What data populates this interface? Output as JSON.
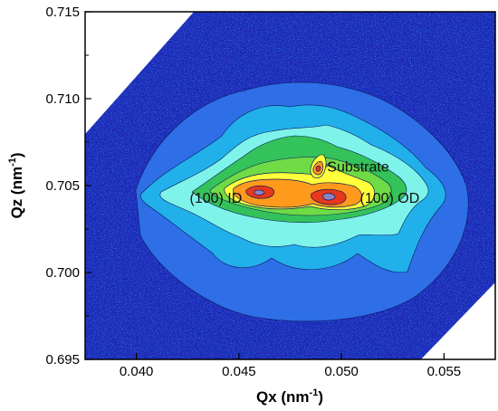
{
  "chart_data": {
    "type": "heatmap",
    "title": "",
    "xlabel": {
      "main": "Qx (nm",
      "sup": "-1",
      "close": ")"
    },
    "ylabel": {
      "main": "Qz (nm",
      "sup": "-1",
      "close": ")"
    },
    "xlim": [
      0.0375,
      0.0575
    ],
    "ylim": [
      0.695,
      0.715
    ],
    "x_ticks": [
      {
        "value": 0.04,
        "label": "0.040"
      },
      {
        "value": 0.045,
        "label": "0.045"
      },
      {
        "value": 0.05,
        "label": "0.050"
      },
      {
        "value": 0.055,
        "label": "0.055"
      }
    ],
    "y_ticks": [
      {
        "value": 0.695,
        "label": "0.695"
      },
      {
        "value": 0.7,
        "label": "0.700"
      },
      {
        "value": 0.705,
        "label": "0.705"
      },
      {
        "value": 0.71,
        "label": "0.710"
      },
      {
        "value": 0.715,
        "label": "0.715"
      }
    ],
    "grid": false,
    "colorscale": [
      "#1a1aa8",
      "#2f6ff0",
      "#24b3ec",
      "#7ef3ea",
      "#34c25a",
      "#6fdc46",
      "#ffff3a",
      "#ff9a1c",
      "#e8381c",
      "#8f80c0"
    ],
    "peaks": [
      {
        "label": "(100) ID",
        "x": 0.0465,
        "z": 0.7047
      },
      {
        "label": "(100) OD",
        "x": 0.0495,
        "z": 0.7044
      },
      {
        "label": "Substrate",
        "x": 0.049,
        "z": 0.7061
      }
    ],
    "annotations": [
      {
        "text": "Substrate",
        "x": 0.0493,
        "z": 0.7058
      },
      {
        "text": "(100) ID",
        "x": 0.0426,
        "z": 0.704
      },
      {
        "text": "(100) OD",
        "x": 0.0509,
        "z": 0.704
      }
    ]
  }
}
